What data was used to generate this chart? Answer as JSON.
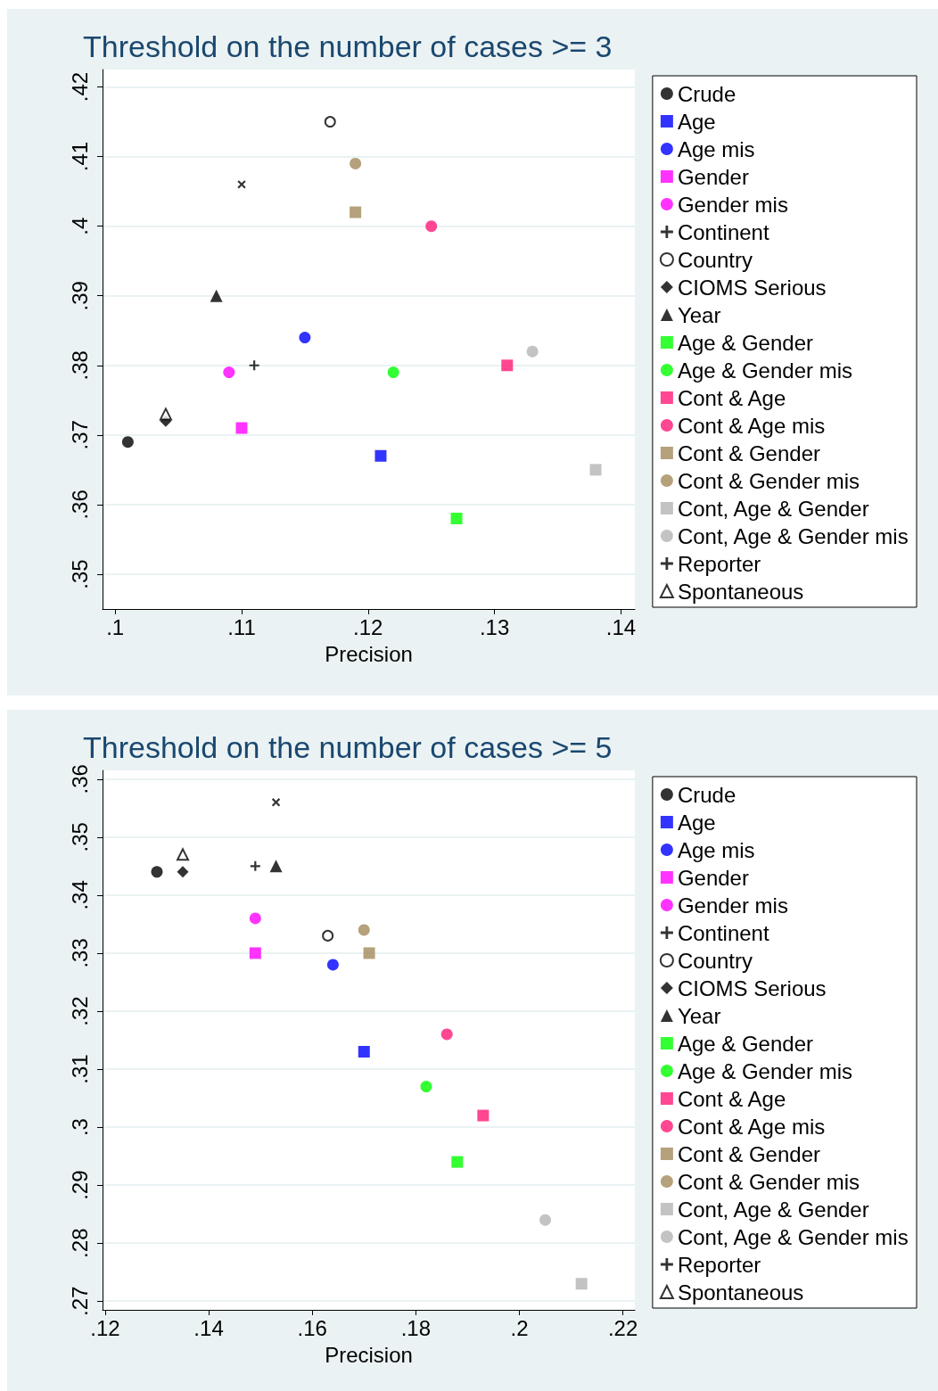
{
  "chart_data": [
    {
      "type": "scatter",
      "title": "Threshold on the number of cases >= 3",
      "xlabel": "Precision",
      "legend": "right",
      "grid": "y",
      "xlim": [
        0.099,
        0.1411
      ],
      "ylim": [
        0.345,
        0.4225
      ],
      "xticks": [
        {
          "value": 0.1,
          "label": ".1"
        },
        {
          "value": 0.11,
          "label": ".11"
        },
        {
          "value": 0.12,
          "label": ".12"
        },
        {
          "value": 0.13,
          "label": ".13"
        },
        {
          "value": 0.14,
          "label": ".14"
        }
      ],
      "yticks": [
        {
          "value": 0.35,
          "label": ".35"
        },
        {
          "value": 0.36,
          "label": ".36"
        },
        {
          "value": 0.37,
          "label": ".37"
        },
        {
          "value": 0.38,
          "label": ".38"
        },
        {
          "value": 0.39,
          "label": ".39"
        },
        {
          "value": 0.4,
          "label": ".4"
        },
        {
          "value": 0.41,
          "label": ".41"
        },
        {
          "value": 0.42,
          "label": ".42"
        }
      ],
      "series": [
        {
          "name": "Crude",
          "color": "#000000",
          "marker": "circle",
          "x": [
            0.101
          ],
          "values": [
            0.369
          ]
        },
        {
          "name": "Age",
          "color": "#0000ff",
          "marker": "square",
          "x": [
            0.121
          ],
          "values": [
            0.367
          ]
        },
        {
          "name": "Age mis",
          "color": "#0000ff",
          "marker": "circle",
          "x": [
            0.115
          ],
          "values": [
            0.384
          ]
        },
        {
          "name": "Gender",
          "color": "#ff00ff",
          "marker": "square",
          "x": [
            0.11
          ],
          "values": [
            0.371
          ]
        },
        {
          "name": "Gender mis",
          "color": "#ff00ff",
          "marker": "circle",
          "x": [
            0.109
          ],
          "values": [
            0.379
          ]
        },
        {
          "name": "Continent",
          "color": "#000000",
          "marker": "x",
          "x": [
            0.11
          ],
          "values": [
            0.406
          ]
        },
        {
          "name": "Country",
          "color": "#000000",
          "marker": "circle-open",
          "x": [
            0.117
          ],
          "values": [
            0.415
          ]
        },
        {
          "name": "CIOMS Serious",
          "color": "#000000",
          "marker": "diamond",
          "x": [
            0.104
          ],
          "values": [
            0.372
          ]
        },
        {
          "name": "Year",
          "color": "#000000",
          "marker": "triangle",
          "x": [
            0.108
          ],
          "values": [
            0.39
          ]
        },
        {
          "name": "Age & Gender",
          "color": "#00ff00",
          "marker": "square",
          "x": [
            0.127
          ],
          "values": [
            0.358
          ]
        },
        {
          "name": "Age & Gender mis",
          "color": "#00ff00",
          "marker": "circle",
          "x": [
            0.122
          ],
          "values": [
            0.379
          ]
        },
        {
          "name": "Cont & Age",
          "color": "#ff1a75",
          "marker": "square",
          "x": [
            0.131
          ],
          "values": [
            0.38
          ]
        },
        {
          "name": "Cont & Age mis",
          "color": "#ff1a75",
          "marker": "circle",
          "x": [
            0.125
          ],
          "values": [
            0.4
          ]
        },
        {
          "name": "Cont & Gender",
          "color": "#a38a5a",
          "marker": "square",
          "x": [
            0.119
          ],
          "values": [
            0.402
          ]
        },
        {
          "name": "Cont & Gender mis",
          "color": "#a38a5a",
          "marker": "circle",
          "x": [
            0.119
          ],
          "values": [
            0.409
          ]
        },
        {
          "name": "Cont, Age & Gender",
          "color": "#b4b4b4",
          "marker": "square",
          "x": [
            0.138
          ],
          "values": [
            0.365
          ]
        },
        {
          "name": "Cont, Age & Gender mis",
          "color": "#b4b4b4",
          "marker": "circle",
          "x": [
            0.133
          ],
          "values": [
            0.382
          ]
        },
        {
          "name": "Reporter",
          "color": "#000000",
          "marker": "cross",
          "x": [
            0.111
          ],
          "values": [
            0.38
          ]
        },
        {
          "name": "Spontaneous",
          "color": "#000000",
          "marker": "triangle-open",
          "x": [
            0.104
          ],
          "values": [
            0.373
          ]
        }
      ]
    },
    {
      "type": "scatter",
      "title": "Threshold on the number of cases >= 5",
      "xlabel": "Precision",
      "legend": "right",
      "grid": "y",
      "xlim": [
        0.1195,
        0.2223
      ],
      "ylim": [
        0.2685,
        0.3615
      ],
      "xticks": [
        {
          "value": 0.12,
          "label": ".12"
        },
        {
          "value": 0.14,
          "label": ".14"
        },
        {
          "value": 0.16,
          "label": ".16"
        },
        {
          "value": 0.18,
          "label": ".18"
        },
        {
          "value": 0.2,
          "label": ".2"
        },
        {
          "value": 0.22,
          "label": ".22"
        }
      ],
      "yticks": [
        {
          "value": 0.27,
          "label": ".27"
        },
        {
          "value": 0.28,
          "label": ".28"
        },
        {
          "value": 0.29,
          "label": ".29"
        },
        {
          "value": 0.3,
          "label": ".3"
        },
        {
          "value": 0.31,
          "label": ".31"
        },
        {
          "value": 0.32,
          "label": ".32"
        },
        {
          "value": 0.33,
          "label": ".33"
        },
        {
          "value": 0.34,
          "label": ".34"
        },
        {
          "value": 0.35,
          "label": ".35"
        },
        {
          "value": 0.36,
          "label": ".36"
        }
      ],
      "series": [
        {
          "name": "Crude",
          "color": "#000000",
          "marker": "circle",
          "x": [
            0.13
          ],
          "values": [
            0.344
          ]
        },
        {
          "name": "Age",
          "color": "#0000ff",
          "marker": "square",
          "x": [
            0.17
          ],
          "values": [
            0.313
          ]
        },
        {
          "name": "Age mis",
          "color": "#0000ff",
          "marker": "circle",
          "x": [
            0.164
          ],
          "values": [
            0.328
          ]
        },
        {
          "name": "Gender",
          "color": "#ff00ff",
          "marker": "square",
          "x": [
            0.149
          ],
          "values": [
            0.33
          ]
        },
        {
          "name": "Gender mis",
          "color": "#ff00ff",
          "marker": "circle",
          "x": [
            0.149
          ],
          "values": [
            0.336
          ]
        },
        {
          "name": "Continent",
          "color": "#000000",
          "marker": "x",
          "x": [
            0.153
          ],
          "values": [
            0.356
          ]
        },
        {
          "name": "Country",
          "color": "#000000",
          "marker": "circle-open",
          "x": [
            0.163
          ],
          "values": [
            0.333
          ]
        },
        {
          "name": "CIOMS Serious",
          "color": "#000000",
          "marker": "diamond",
          "x": [
            0.135
          ],
          "values": [
            0.344
          ]
        },
        {
          "name": "Year",
          "color": "#000000",
          "marker": "triangle",
          "x": [
            0.153
          ],
          "values": [
            0.345
          ]
        },
        {
          "name": "Age & Gender",
          "color": "#00ff00",
          "marker": "square",
          "x": [
            0.188
          ],
          "values": [
            0.294
          ]
        },
        {
          "name": "Age & Gender mis",
          "color": "#00ff00",
          "marker": "circle",
          "x": [
            0.182
          ],
          "values": [
            0.307
          ]
        },
        {
          "name": "Cont & Age",
          "color": "#ff1a75",
          "marker": "square",
          "x": [
            0.193
          ],
          "values": [
            0.302
          ]
        },
        {
          "name": "Cont & Age mis",
          "color": "#ff1a75",
          "marker": "circle",
          "x": [
            0.186
          ],
          "values": [
            0.316
          ]
        },
        {
          "name": "Cont & Gender",
          "color": "#a38a5a",
          "marker": "square",
          "x": [
            0.171
          ],
          "values": [
            0.33
          ]
        },
        {
          "name": "Cont & Gender mis",
          "color": "#a38a5a",
          "marker": "circle",
          "x": [
            0.17
          ],
          "values": [
            0.334
          ]
        },
        {
          "name": "Cont, Age & Gender",
          "color": "#b4b4b4",
          "marker": "square",
          "x": [
            0.212
          ],
          "values": [
            0.273
          ]
        },
        {
          "name": "Cont, Age & Gender mis",
          "color": "#b4b4b4",
          "marker": "circle",
          "x": [
            0.205
          ],
          "values": [
            0.284
          ]
        },
        {
          "name": "Reporter",
          "color": "#000000",
          "marker": "cross",
          "x": [
            0.149
          ],
          "values": [
            0.345
          ]
        },
        {
          "name": "Spontaneous",
          "color": "#000000",
          "marker": "triangle-open",
          "x": [
            0.135
          ],
          "values": [
            0.347
          ]
        }
      ]
    }
  ]
}
